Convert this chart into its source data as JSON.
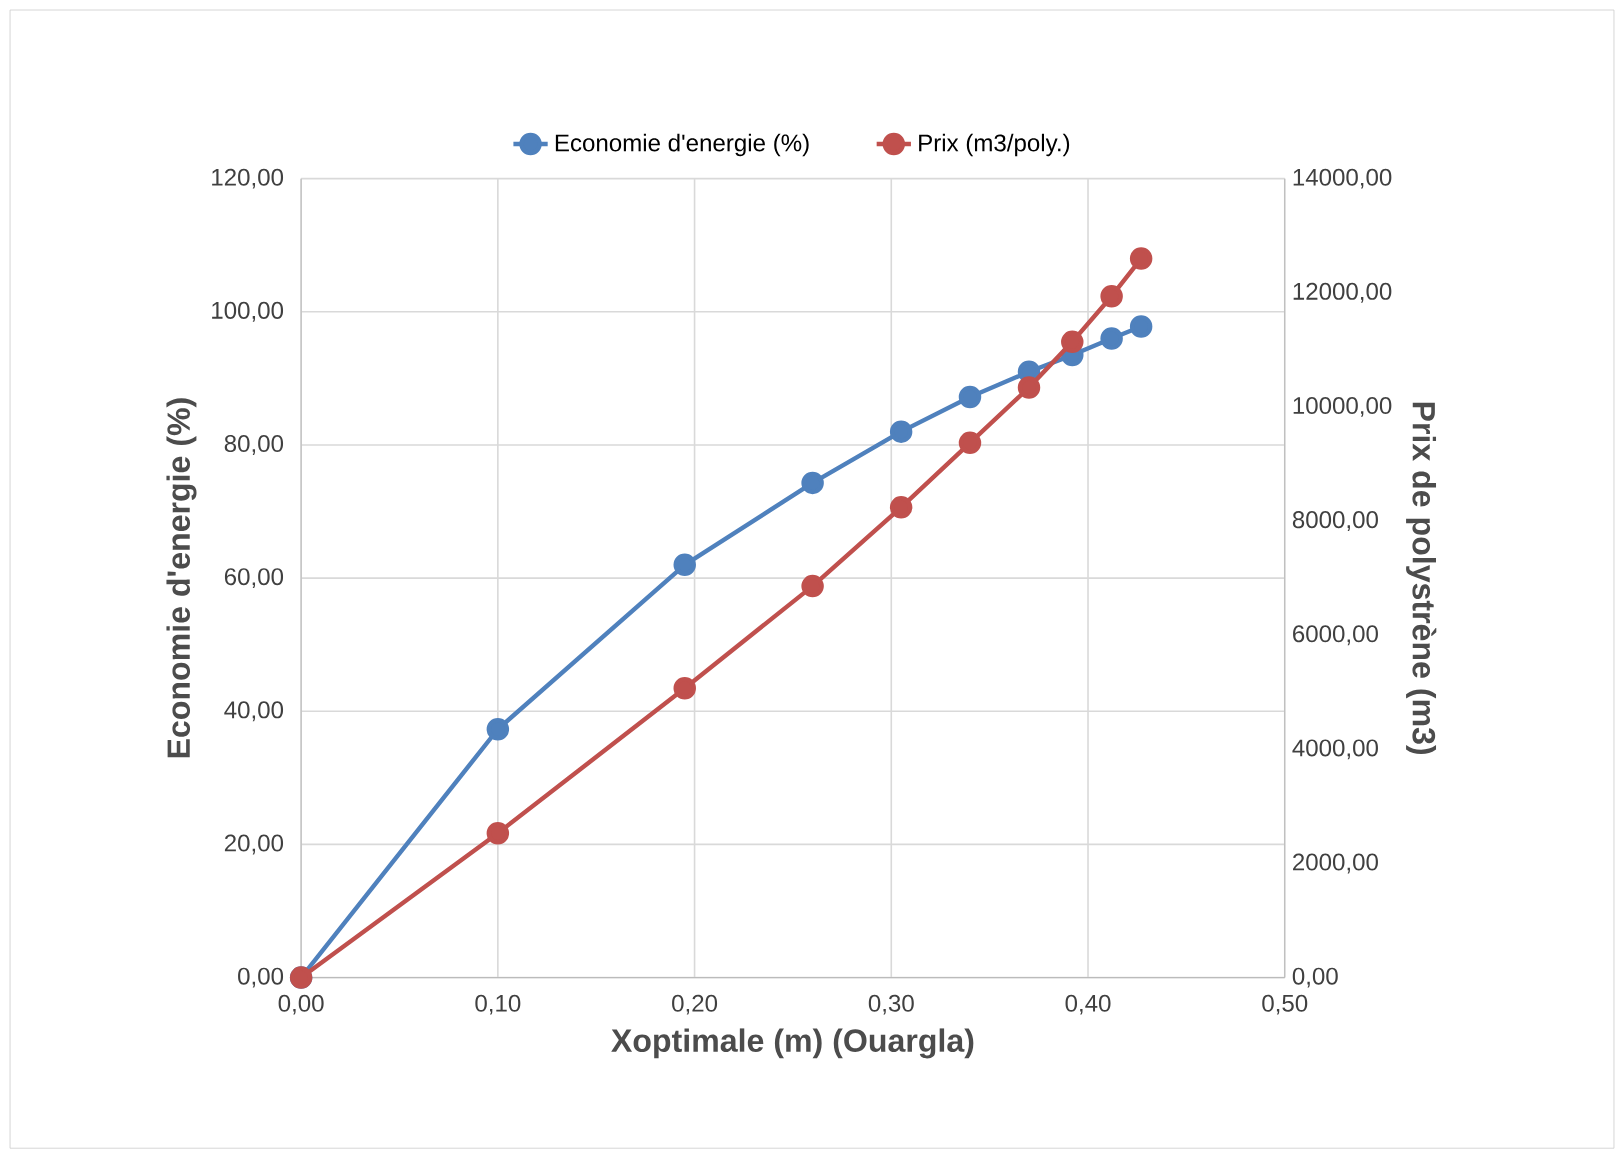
{
  "chart_data": {
    "type": "line",
    "xlabel": "Xoptimale (m) (Ouargla)",
    "ylabel": "Economie d'energie (%)",
    "y2label": "Prix  de polystrène (m3)",
    "x": [
      0,
      0.1,
      0.195,
      0.26,
      0.305,
      0.34,
      0.37,
      0.392,
      0.412,
      0.427
    ],
    "series": [
      {
        "name": "Economie d'energie (%)",
        "color": "#4f81bd",
        "values": [
          0,
          37.3,
          62,
          74.3,
          82,
          87.2,
          91,
          93.5,
          96,
          97.8
        ]
      },
      {
        "name": "Prix (m3/poly.)",
        "color": "#c0504d",
        "axis": "y2",
        "values": [
          0,
          2530,
          5070,
          6860,
          8240,
          9370,
          10340,
          11140,
          11940,
          12600
        ]
      }
    ],
    "xlim": [
      0,
      0.5
    ],
    "ylim": [
      0,
      120
    ],
    "y2lim": [
      0,
      14000
    ],
    "xticks": [
      {
        "value": 0,
        "label": "0,00"
      },
      {
        "value": 0.1,
        "label": "0,10"
      },
      {
        "value": 0.2,
        "label": "0,20"
      },
      {
        "value": 0.3,
        "label": "0,30"
      },
      {
        "value": 0.4,
        "label": "0,40"
      },
      {
        "value": 0.5,
        "label": "0,50"
      }
    ],
    "yticks": [
      {
        "value": 0,
        "label": "0,00"
      },
      {
        "value": 20,
        "label": "20,00"
      },
      {
        "value": 40,
        "label": "40,00"
      },
      {
        "value": 60,
        "label": "60,00"
      },
      {
        "value": 80,
        "label": "80,00"
      },
      {
        "value": 100,
        "label": "100,00"
      },
      {
        "value": 120,
        "label": "120,00"
      }
    ],
    "y2ticks": [
      {
        "value": 0,
        "label": "0,00"
      },
      {
        "value": 2000,
        "label": "2000,00"
      },
      {
        "value": 4000,
        "label": "4000,00"
      },
      {
        "value": 6000,
        "label": "6000,00"
      },
      {
        "value": 8000,
        "label": "8000,00"
      },
      {
        "value": 10000,
        "label": "10000,00"
      },
      {
        "value": 12000,
        "label": "12000,00"
      },
      {
        "value": 14000,
        "label": "14000,00"
      }
    ],
    "grid": true,
    "legend": "top",
    "marker": "circle",
    "line_style": "solid"
  }
}
